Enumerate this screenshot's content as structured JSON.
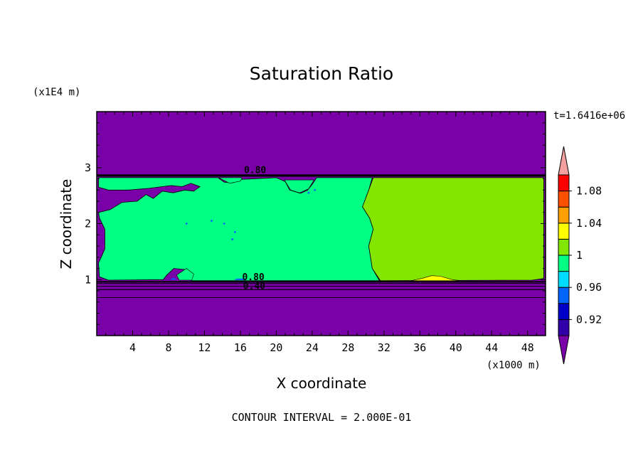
{
  "chart_data": {
    "type": "heatmap",
    "title": "Saturation Ratio",
    "xlabel": "X coordinate",
    "ylabel": "Z coordinate",
    "x_unit": "(x1000 m)",
    "y_unit": "(x1E4 m)",
    "timestamp": "t=1.6416e+06",
    "footer": "CONTOUR INTERVAL = 2.000E-01",
    "xlim": [
      0,
      50
    ],
    "ylim": [
      0,
      4
    ],
    "x_ticks": [
      "4",
      "8",
      "12",
      "16",
      "20",
      "24",
      "28",
      "32",
      "36",
      "40",
      "44",
      "48"
    ],
    "y_ticks": [
      "1",
      "2",
      "3"
    ],
    "contour_labels": [
      "0.80",
      "0.80",
      "0.40"
    ],
    "colorbar": {
      "labels": [
        "1.08",
        "1.04",
        "1",
        "0.96",
        "0.92"
      ],
      "levels": [
        0.92,
        0.94,
        0.96,
        0.98,
        1.0,
        1.02,
        1.04,
        1.06,
        1.08
      ],
      "colors": [
        "#7a00a8",
        "#3200a8",
        "#0000c8",
        "#0064ff",
        "#00dcff",
        "#00ff82",
        "#82e600",
        "#ffff00",
        "#ffa000",
        "#ff5000",
        "#ff0000",
        "#f5a0a0"
      ]
    },
    "fields": {
      "background_dry": "#7a00a8",
      "moist_layer": "#00ff82",
      "subsaturated_right": "#82e600",
      "supersaturated_patch": "#ffff00"
    },
    "regions": [
      {
        "name": "upper-dry-layer",
        "x": [
          0,
          50
        ],
        "z": [
          2.85,
          4.0
        ],
        "value": 0.4
      },
      {
        "name": "moist-layer",
        "x": [
          0,
          50
        ],
        "z": [
          0.95,
          2.85
        ],
        "value": 0.99
      },
      {
        "name": "right-region",
        "x": [
          30.5,
          50
        ],
        "z": [
          0.95,
          2.8
        ],
        "value": 1.01
      },
      {
        "name": "lower-dry-layer",
        "x": [
          0,
          50
        ],
        "z": [
          0,
          0.95
        ],
        "value": 0.4
      }
    ]
  }
}
